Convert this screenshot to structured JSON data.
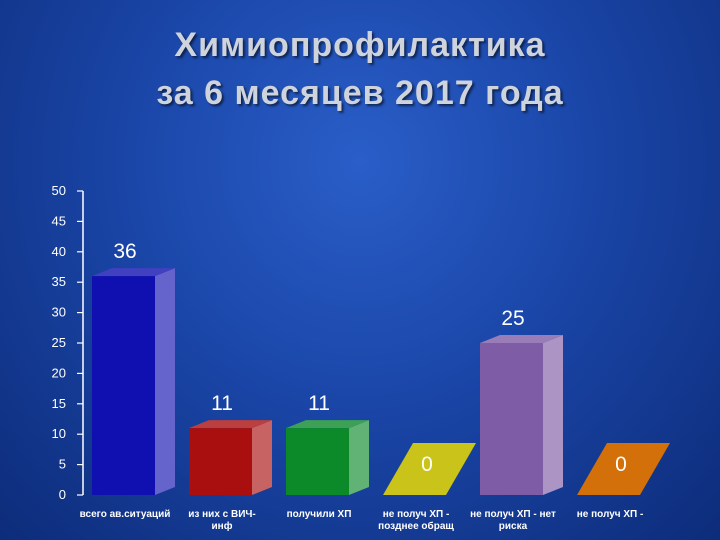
{
  "title_line1": "Химиопрофилактика",
  "title_line2": "за 6 месяцев 2017 года",
  "chart_data": {
    "type": "bar",
    "title": "",
    "categories": [
      [
        "всего ав.ситуаций"
      ],
      [
        "из них с ВИЧ-",
        "инф"
      ],
      [
        "получили ХП"
      ],
      [
        "не получ ХП -",
        "позднее обращ"
      ],
      [
        "не получ ХП - нет",
        "риска"
      ],
      [
        "не получ ХП -"
      ]
    ],
    "values": [
      36,
      11,
      11,
      0,
      25,
      0
    ],
    "colors": [
      "#1010b0",
      "#aa0f0f",
      "#0c8a2a",
      "#c9c31a",
      "#7f5ca6",
      "#d3700a"
    ],
    "ylim": [
      0,
      50
    ],
    "yticks": [
      0,
      5,
      10,
      15,
      20,
      25,
      30,
      35,
      40,
      45,
      50
    ],
    "grid": false,
    "legend": "none"
  }
}
